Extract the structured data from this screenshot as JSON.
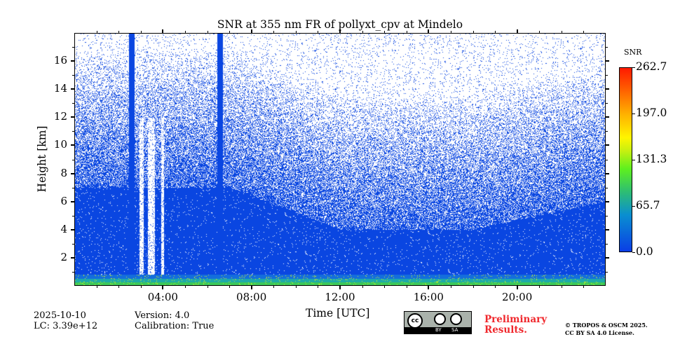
{
  "chart_data": {
    "type": "heatmap",
    "title": "SNR at 355 nm FR of pollyxt_cpv at Mindelo",
    "xlabel": "Time [UTC]",
    "ylabel": "Height [km]",
    "xlim_hours": [
      0,
      24
    ],
    "ylim": [
      0,
      18
    ],
    "x_ticks": [
      "04:00",
      "08:00",
      "12:00",
      "16:00",
      "20:00"
    ],
    "x_tick_hours": [
      4,
      8,
      12,
      16,
      20
    ],
    "y_ticks": [
      "2",
      "4",
      "6",
      "8",
      "10",
      "12",
      "14",
      "16"
    ],
    "y_tick_values": [
      2,
      4,
      6,
      8,
      10,
      12,
      14,
      16
    ],
    "colorbar": {
      "label": "SNR",
      "min": 0.0,
      "max": 262.7,
      "ticks": [
        "262.7",
        "197.0",
        "131.3",
        "65.7",
        "0.0"
      ],
      "tick_values": [
        262.7,
        197.0,
        131.3,
        65.7,
        0.0
      ],
      "colormap": "jet-like"
    },
    "features": {
      "high_snr_layer_km": [
        0,
        0.8
      ],
      "dense_signal_top_km": {
        "night_start": 7,
        "midday": 4,
        "night_end": 6
      },
      "full_column_bars_hours": [
        2.55,
        6.55
      ],
      "gaps_hours": [
        [
          2.9,
          3.1
        ],
        [
          3.3,
          3.6
        ],
        [
          3.9,
          4.0
        ]
      ]
    }
  },
  "footer": {
    "date": "2025-10-10",
    "lc": "LC: 3.39e+12",
    "version": "Version: 4.0",
    "calibration": "Calibration: True",
    "license_badge": "CC BY SA",
    "by": "BY",
    "sa": "SA",
    "cc": "cc",
    "preliminary": "Preliminary",
    "results": "Results.",
    "copyright": "© TROPOS & OSCM 2025.",
    "license": "CC BY SA 4.0 License."
  }
}
